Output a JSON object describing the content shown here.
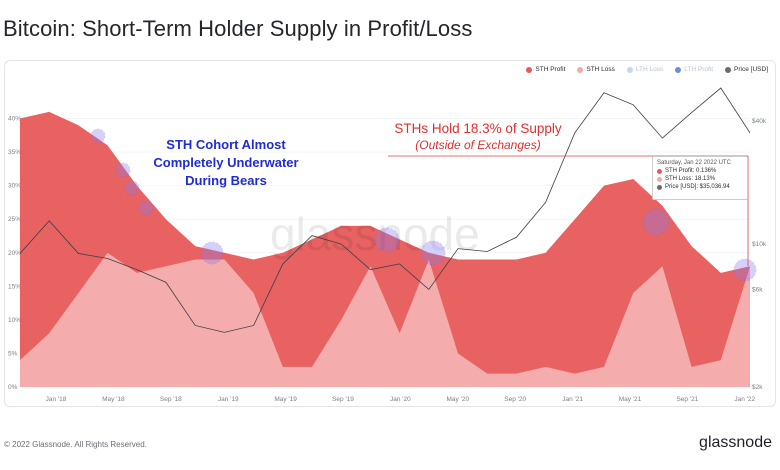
{
  "header": {
    "title": "Bitcoin: Short-Term Holder Supply in Profit/Loss"
  },
  "legend": [
    {
      "label": "STH Profit",
      "color": "#e85a5a",
      "faded": false
    },
    {
      "label": "STH Loss",
      "color": "#f2a9a9",
      "faded": false
    },
    {
      "label": "LTH Loss",
      "color": "#c9d6ee",
      "faded": true
    },
    {
      "label": "LTH Profit",
      "color": "#6b8fe0",
      "faded": true
    },
    {
      "label": "Price [USD]",
      "color": "#6b6b6b",
      "faded": false
    }
  ],
  "annotations": {
    "blue_l1": "STH Cohort Almost",
    "blue_l2": "Completely Underwater",
    "blue_l3": "During Bears",
    "red_l1": "STHs Hold 18.3% of Supply",
    "red_l2": "(Outside of Exchanges)",
    "watermark": "glassnode"
  },
  "tooltip": {
    "date": "Saturday, Jan 22 2022 UTC",
    "profit": "STH Profit: 0.136%",
    "loss": "STH Loss: 18.13%",
    "price": "Price [USD]: $35,036.94"
  },
  "footer": {
    "copyright": "© 2022 Glassnode. All Rights Reserved.",
    "brand": "glassnode"
  },
  "chart_data": {
    "type": "area",
    "title": "Bitcoin: Short-Term Holder Supply in Profit/Loss",
    "x_ticks": [
      "Jan '18",
      "May '18",
      "Sep '18",
      "Jan '19",
      "May '19",
      "Sep '19",
      "Jan '20",
      "May '20",
      "Sep '20",
      "Jan '21",
      "May '21",
      "Sep '21",
      "Jan '22"
    ],
    "y_ticks_left": [
      "0%",
      "5%",
      "10%",
      "15%",
      "20%",
      "25%",
      "30%",
      "35%",
      "40%"
    ],
    "y_ticks_right": [
      "$2k",
      "$6k",
      "$10k",
      "$40k"
    ],
    "ylim_left": [
      0,
      45
    ],
    "y_right_scale": "log",
    "x": [
      "2017-11",
      "2018-01",
      "2018-03",
      "2018-05",
      "2018-07",
      "2018-09",
      "2018-11",
      "2019-01",
      "2019-03",
      "2019-05",
      "2019-07",
      "2019-09",
      "2019-11",
      "2020-01",
      "2020-03",
      "2020-05",
      "2020-07",
      "2020-09",
      "2020-11",
      "2021-01",
      "2021-03",
      "2021-05",
      "2021-07",
      "2021-09",
      "2021-11",
      "2022-01"
    ],
    "series": [
      {
        "name": "STH Profit",
        "unit": "% of supply",
        "values": [
          40,
          41,
          39,
          36,
          30,
          25,
          21,
          20,
          19,
          20,
          22,
          24,
          24,
          22,
          20,
          19,
          19,
          19,
          20,
          25,
          30,
          31,
          27,
          21,
          17,
          0.1
        ]
      },
      {
        "name": "STH Loss",
        "unit": "% of supply",
        "values": [
          4,
          8,
          14,
          20,
          17,
          18,
          19,
          19,
          14,
          3,
          3,
          10,
          18,
          8,
          19,
          5,
          2,
          2,
          3,
          2,
          3,
          14,
          18,
          3,
          4,
          18
        ]
      },
      {
        "name": "Price [USD]",
        "unit": "USD",
        "values": [
          9000,
          13000,
          9000,
          8500,
          7500,
          6500,
          4000,
          3700,
          4000,
          8000,
          11000,
          10000,
          7500,
          8000,
          6000,
          9500,
          9200,
          10800,
          16000,
          35000,
          55000,
          48000,
          33000,
          44000,
          58000,
          35000
        ]
      }
    ]
  }
}
